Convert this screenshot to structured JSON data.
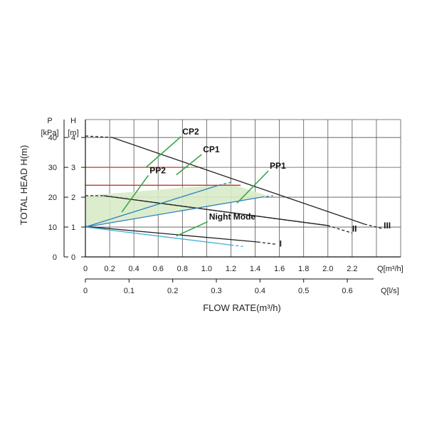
{
  "chart_data": {
    "type": "line",
    "title": "",
    "xlabel": "FLOW RATE(m³/h)",
    "ylabel": "TOTAL HEAD H(m)",
    "xlim": [
      0,
      2.6
    ],
    "ylim": [
      0,
      4.6
    ],
    "x_ticks": [
      "0",
      "0.2",
      "0.4",
      "0.6",
      "0.8",
      "1.0",
      "1.2",
      "1.4",
      "1.6",
      "1.8",
      "2.0",
      "2.2"
    ],
    "x_unit": "Q[m³/h]",
    "x2_ticks": [
      "0",
      "0.1",
      "0.2",
      "0.3",
      "0.4",
      "0.5",
      "0.6"
    ],
    "x2_unit": "Q[l/s]",
    "y_ticks_m": [
      "0",
      "1",
      "2",
      "3",
      "4"
    ],
    "y_ticks_kpa": [
      "0",
      "10",
      "20",
      "30",
      "40"
    ],
    "y_unit_m": "[m]",
    "y_unit_kpa": "[kPa]",
    "y_head_m": "H",
    "y_head_kpa": "P",
    "series": [
      {
        "name": "III",
        "color": "#222222",
        "style": "solid",
        "x": [
          0.22,
          2.3
        ],
        "y": [
          4.0,
          1.1
        ]
      },
      {
        "name": "III-dashed",
        "color": "#222222",
        "style": "dashed",
        "x": [
          0,
          0.22
        ],
        "y": [
          4.05,
          4.0
        ]
      },
      {
        "name": "III-tail",
        "color": "#222222",
        "style": "dashed",
        "x": [
          2.3,
          2.45
        ],
        "y": [
          1.1,
          0.95
        ]
      },
      {
        "name": "II",
        "color": "#222222",
        "style": "solid",
        "x": [
          0.15,
          2.0
        ],
        "y": [
          2.05,
          1.05
        ]
      },
      {
        "name": "II-dashed",
        "color": "#222222",
        "style": "dashed",
        "x": [
          0,
          0.15,
          2.0,
          2.2
        ],
        "y": [
          2.05,
          2.05,
          1.05,
          0.8
        ]
      },
      {
        "name": "I",
        "color": "#222222",
        "style": "solid",
        "x": [
          0,
          1.42
        ],
        "y": [
          1.02,
          0.5
        ]
      },
      {
        "name": "I-dashed",
        "color": "#222222",
        "style": "dashed",
        "x": [
          1.42,
          1.58
        ],
        "y": [
          0.5,
          0.42
        ]
      },
      {
        "name": "CP2",
        "color": "#c0392b",
        "style": "solid",
        "x": [
          0,
          0.85
        ],
        "y": [
          3.0,
          3.0
        ]
      },
      {
        "name": "CP1",
        "color": "#c0392b",
        "style": "solid",
        "x": [
          0,
          1.28
        ],
        "y": [
          2.4,
          2.4
        ]
      },
      {
        "name": "PP2",
        "color": "#2e7fc2",
        "style": "solid",
        "x": [
          0,
          1.1
        ],
        "y": [
          1.0,
          2.4
        ]
      },
      {
        "name": "PP2-dashed",
        "color": "#2e7fc2",
        "style": "dashed",
        "x": [
          1.1,
          1.22
        ],
        "y": [
          2.4,
          2.52
        ]
      },
      {
        "name": "PP1",
        "color": "#2e7fc2",
        "style": "solid",
        "x": [
          0,
          1.45
        ],
        "y": [
          1.0,
          2.0
        ]
      },
      {
        "name": "PP1-dashed",
        "color": "#2e7fc2",
        "style": "dashed",
        "x": [
          1.45,
          1.55
        ],
        "y": [
          2.0,
          2.05
        ]
      },
      {
        "name": "Night Mode",
        "color": "#3fb0d8",
        "style": "solid",
        "x": [
          0,
          1.2
        ],
        "y": [
          1.0,
          0.4
        ]
      },
      {
        "name": "Night Mode-dashed",
        "color": "#3fb0d8",
        "style": "dashed",
        "x": [
          1.2,
          1.3
        ],
        "y": [
          0.4,
          0.35
        ]
      }
    ],
    "operating_area": {
      "x": [
        0,
        0,
        1.2,
        1.5,
        1.45,
        0
      ],
      "y": [
        1.25,
        2.05,
        2.45,
        2.05,
        2.0,
        1.0
      ],
      "color": "#d8ebc8"
    },
    "annotations": [
      {
        "text": "CP2",
        "x": 0.8,
        "y": 4.1,
        "lx": 0.5,
        "ly": 3.0
      },
      {
        "text": "CP1",
        "x": 0.97,
        "y": 3.5,
        "lx": 0.75,
        "ly": 2.75
      },
      {
        "text": "PP2",
        "x": 0.53,
        "y": 2.8,
        "lx": 0.3,
        "ly": 1.5
      },
      {
        "text": "PP1",
        "x": 1.52,
        "y": 2.95,
        "lx": 1.25,
        "ly": 1.8
      },
      {
        "text": "Night Mode",
        "x": 1.02,
        "y": 1.25,
        "lx": 0.75,
        "ly": 0.7
      },
      {
        "text": "III",
        "x": 2.46,
        "y": 0.95
      },
      {
        "text": "II",
        "x": 2.2,
        "y": 0.85
      },
      {
        "text": "I",
        "x": 1.6,
        "y": 0.35
      }
    ],
    "label_line_color": "#3aa64a"
  }
}
